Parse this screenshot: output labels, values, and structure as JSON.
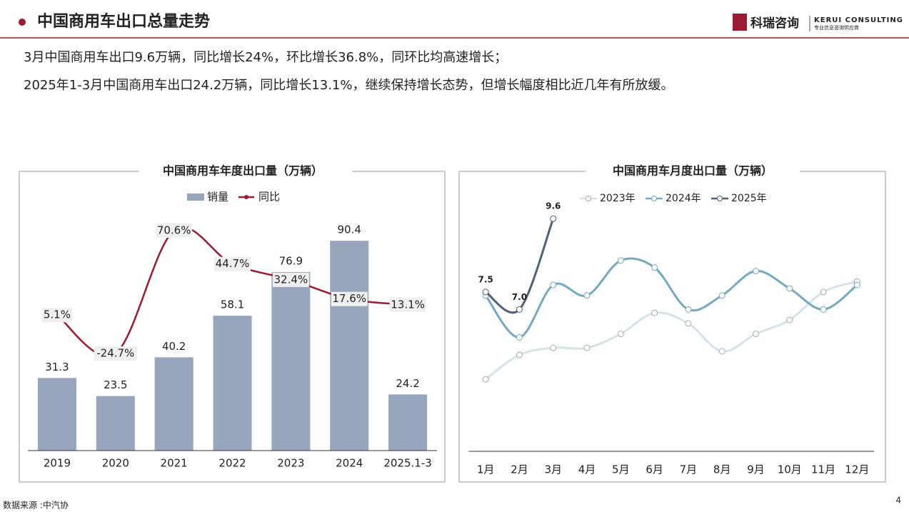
{
  "header": {
    "title": "中国商用车出口总量走势",
    "logo_name": "科瑞咨询",
    "logo_en": "KERUI CONSULTING",
    "logo_tagline": "专业信息咨询供应商"
  },
  "summary": [
    "3月中国商用车出口9.6万辆，同比增长24%，环比增长36.8%，同环比均高速增长；",
    "2025年1-3月中国商用车出口24.2万辆，同比增长13.1%，继续保持增长态势，但增长幅度相比近几年有所放缓。"
  ],
  "source": "数据来源 :中汽协",
  "page_number": "4",
  "chart_data": [
    {
      "type": "bar",
      "title": "中国商用车年度出口量（万辆）",
      "categories": [
        "2019",
        "2020",
        "2021",
        "2022",
        "2023",
        "2024",
        "2025.1-3"
      ],
      "series": [
        {
          "name": "销量",
          "color": "#97a6bd",
          "values": [
            31.3,
            23.5,
            40.2,
            58.1,
            76.9,
            90.4,
            24.2
          ]
        },
        {
          "name": "同比",
          "color": "#9b1b30",
          "type": "line",
          "axis": "y2",
          "values": [
            5.1,
            -24.7,
            70.6,
            44.7,
            32.4,
            17.6,
            13.1
          ],
          "value_labels": [
            "5.1%",
            "-24.7%",
            "70.6%",
            "44.7%",
            "32.4%",
            "17.6%",
            "13.1%"
          ]
        }
      ],
      "ylim": [
        0,
        100
      ],
      "y2lim": [
        -100,
        80
      ]
    },
    {
      "type": "line",
      "title": "中国商用车月度出口量（万辆）",
      "categories": [
        "1月",
        "2月",
        "3月",
        "4月",
        "5月",
        "6月",
        "7月",
        "8月",
        "9月",
        "10月",
        "11月",
        "12月"
      ],
      "series": [
        {
          "name": "2023年",
          "color": "#d4e3ea",
          "values": [
            5.0,
            5.7,
            5.9,
            5.9,
            6.3,
            6.9,
            6.6,
            5.8,
            6.3,
            6.7,
            7.5,
            7.8
          ]
        },
        {
          "name": "2024年",
          "color": "#74a9bf",
          "values": [
            7.4,
            6.2,
            7.7,
            7.4,
            8.4,
            8.2,
            7.0,
            7.4,
            8.1,
            7.6,
            7.0,
            7.7
          ]
        },
        {
          "name": "2025年",
          "color": "#4f6178",
          "values": [
            7.5,
            7.0,
            9.6,
            null,
            null,
            null,
            null,
            null,
            null,
            null,
            null,
            null
          ],
          "value_labels": [
            "7.5",
            "7.0",
            "9.6",
            null,
            null,
            null,
            null,
            null,
            null,
            null,
            null,
            null
          ]
        }
      ],
      "ylim": [
        3,
        10
      ]
    }
  ]
}
